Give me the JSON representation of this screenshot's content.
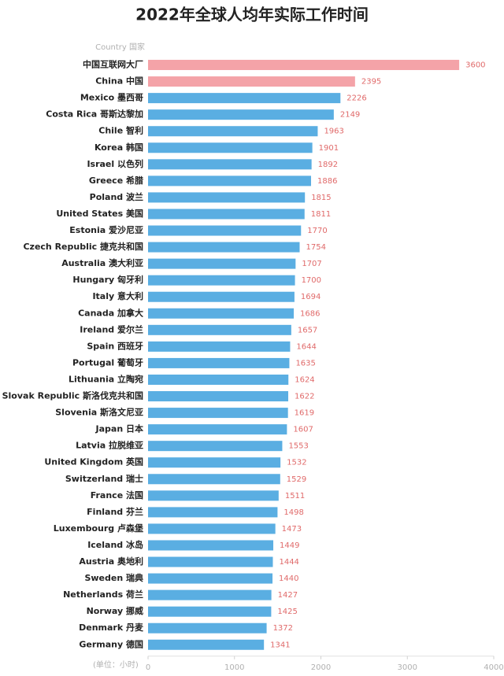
{
  "chart_data": {
    "type": "bar",
    "orientation": "horizontal",
    "title": "2022年全球人均年实际工作时间",
    "category_header": "Country 国家",
    "x_label": "(单位：小时)",
    "categories": [
      "中国互联网大厂",
      "China 中国",
      "Mexico 墨西哥",
      "Costa Rica 哥斯达黎加",
      "Chile 智利",
      "Korea 韩国",
      "Israel 以色列",
      "Greece 希腊",
      "Poland 波兰",
      "United States 美国",
      "Estonia 爱沙尼亚",
      "Czech Republic 捷克共和国",
      "Australia 澳大利亚",
      "Hungary 匈牙利",
      "Italy 意大利",
      "Canada 加拿大",
      "Ireland 爱尔兰",
      "Spain 西班牙",
      "Portugal 葡萄牙",
      "Lithuania 立陶宛",
      "Slovak Republic 斯洛伐克共和国",
      "Slovenia 斯洛文尼亚",
      "Japan 日本",
      "Latvia 拉脱维亚",
      "United Kingdom 英国",
      "Switzerland 瑞士",
      "France 法国",
      "Finland 芬兰",
      "Luxembourg 卢森堡",
      "Iceland 冰岛",
      "Austria 奥地利",
      "Sweden 瑞典",
      "Netherlands 荷兰",
      "Norway 挪威",
      "Denmark 丹麦",
      "Germany 德国"
    ],
    "values": [
      3600,
      2395,
      2226,
      2149,
      1963,
      1901,
      1892,
      1886,
      1815,
      1811,
      1770,
      1754,
      1707,
      1700,
      1694,
      1686,
      1657,
      1644,
      1635,
      1624,
      1622,
      1619,
      1607,
      1553,
      1532,
      1529,
      1511,
      1498,
      1473,
      1449,
      1444,
      1440,
      1427,
      1425,
      1372,
      1341
    ],
    "colors": [
      "#f4a3a8",
      "#f4a3a8",
      "#5aaee2",
      "#5aaee2",
      "#5aaee2",
      "#5aaee2",
      "#5aaee2",
      "#5aaee2",
      "#5aaee2",
      "#5aaee2",
      "#5aaee2",
      "#5aaee2",
      "#5aaee2",
      "#5aaee2",
      "#5aaee2",
      "#5aaee2",
      "#5aaee2",
      "#5aaee2",
      "#5aaee2",
      "#5aaee2",
      "#5aaee2",
      "#5aaee2",
      "#5aaee2",
      "#5aaee2",
      "#5aaee2",
      "#5aaee2",
      "#5aaee2",
      "#5aaee2",
      "#5aaee2",
      "#5aaee2",
      "#5aaee2",
      "#5aaee2",
      "#5aaee2",
      "#5aaee2",
      "#5aaee2",
      "#5aaee2"
    ],
    "xlim": [
      0,
      4000
    ],
    "xticks": [
      0,
      1000,
      2000,
      3000,
      4000
    ],
    "grid": false
  }
}
